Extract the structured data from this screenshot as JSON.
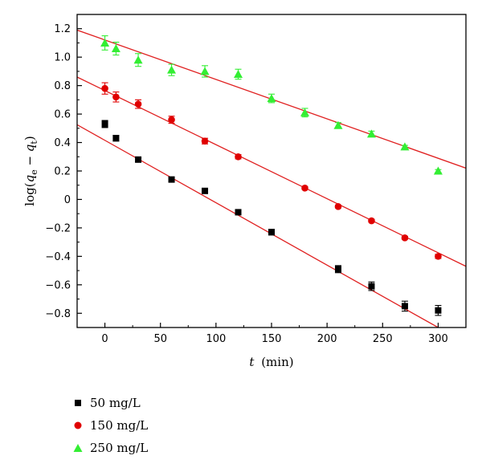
{
  "chart_data": {
    "type": "scatter",
    "xlabel": "t (min)",
    "xlabel_var": "t",
    "xlabel_unit": "(min)",
    "ylabel": "log(q_e − q_t)",
    "ylabel_parts": {
      "prefix": "log(",
      "q1": "q",
      "sub1": "e",
      "minus": " − ",
      "q2": "q",
      "sub2": "t",
      "suffix": ")"
    },
    "xlim": [
      -25,
      325
    ],
    "ylim": [
      -0.9,
      1.3
    ],
    "x_ticks": [
      0,
      50,
      100,
      150,
      200,
      250,
      300
    ],
    "x_tick_labels": [
      "0",
      "50",
      "100",
      "150",
      "200",
      "250",
      "300"
    ],
    "y_ticks": [
      -0.8,
      -0.6,
      -0.4,
      -0.2,
      0,
      0.2,
      0.4,
      0.6,
      0.8,
      1.0,
      1.2
    ],
    "y_tick_labels": [
      "−0.8",
      "−0.6",
      "−0.4",
      "−0.2",
      "0",
      "0.2",
      "0.4",
      "0.6",
      "0.8",
      "1.0",
      "1.2"
    ],
    "grid": false,
    "legend_position": "below",
    "fit_line_color": "#e02020",
    "series": [
      {
        "name": "50 mg/L",
        "marker": "square",
        "color": "#000000",
        "x": [
          0,
          10,
          30,
          60,
          90,
          120,
          150,
          210,
          240,
          270,
          300
        ],
        "y": [
          0.53,
          0.43,
          0.28,
          0.14,
          0.06,
          -0.09,
          -0.23,
          -0.49,
          -0.61,
          -0.75,
          -0.78
        ],
        "err": [
          0.025,
          0.02,
          0.015,
          0.015,
          0.01,
          0.015,
          0.02,
          0.025,
          0.03,
          0.035,
          0.035
        ],
        "fit": {
          "x": [
            -25,
            300
          ],
          "y": [
            0.525,
            -0.9
          ]
        }
      },
      {
        "name": "150 mg/L",
        "marker": "circle",
        "color": "#e00000",
        "x": [
          0,
          10,
          30,
          60,
          90,
          120,
          180,
          210,
          240,
          270,
          300
        ],
        "y": [
          0.78,
          0.72,
          0.67,
          0.56,
          0.41,
          0.3,
          0.08,
          -0.05,
          -0.15,
          -0.27,
          -0.4
        ],
        "err": [
          0.04,
          0.035,
          0.03,
          0.025,
          0.02,
          0.015,
          0.01,
          0.01,
          0.01,
          0.01,
          0.015
        ],
        "fit": {
          "x": [
            -25,
            325
          ],
          "y": [
            0.86,
            -0.47
          ]
        }
      },
      {
        "name": "250 mg/L",
        "marker": "triangle",
        "color": "#33ee33",
        "x": [
          0,
          10,
          30,
          60,
          90,
          120,
          150,
          180,
          210,
          240,
          270,
          300
        ],
        "y": [
          1.1,
          1.06,
          0.98,
          0.91,
          0.9,
          0.88,
          0.71,
          0.61,
          0.52,
          0.46,
          0.37,
          0.2
        ],
        "err": [
          0.05,
          0.045,
          0.045,
          0.04,
          0.04,
          0.035,
          0.03,
          0.03,
          0.02,
          0.02,
          0.01,
          0.01
        ],
        "fit": {
          "x": [
            -25,
            325
          ],
          "y": [
            1.19,
            0.22
          ]
        }
      }
    ]
  }
}
